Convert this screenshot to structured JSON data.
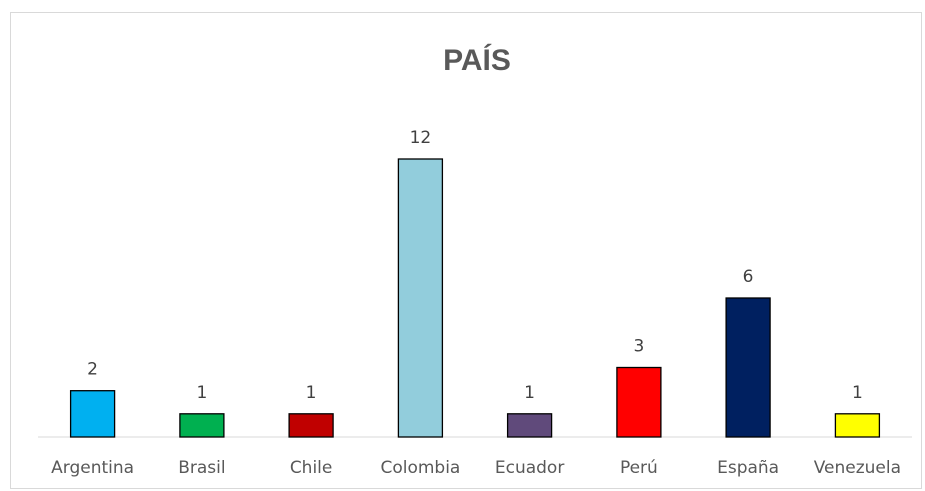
{
  "chart_data": {
    "type": "bar",
    "title": "PAÍS",
    "categories": [
      "Argentina",
      "Brasil",
      "Chile",
      "Colombia",
      "Ecuador",
      "Perú",
      "España",
      "Venezuela"
    ],
    "values": [
      2,
      1,
      1,
      12,
      1,
      3,
      6,
      1
    ],
    "colors": [
      "#00b0f0",
      "#00b050",
      "#c00000",
      "#92cddc",
      "#604a7b",
      "#ff0000",
      "#002060",
      "#ffff00"
    ],
    "xlabel": "",
    "ylabel": "",
    "ylim": [
      0,
      12
    ],
    "grid": false,
    "legend": "none",
    "data_labels": true
  }
}
